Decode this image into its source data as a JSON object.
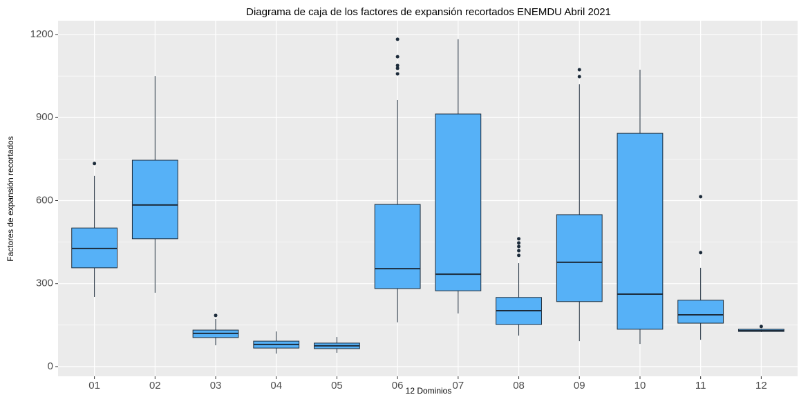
{
  "chart_data": {
    "type": "box",
    "title": "Diagrama de caja de los factores de expansión recortados ENEMDU Abril 2021",
    "x_label": "12 Dominios",
    "y_label": "Factores de expansión recortados",
    "categories": [
      "01",
      "02",
      "03",
      "04",
      "05",
      "06",
      "07",
      "08",
      "09",
      "10",
      "11",
      "12"
    ],
    "color": "#56b1f7",
    "edge_color": "#1c2b3a",
    "boxes": [
      {
        "min": 252,
        "q1": 357,
        "median": 427,
        "q3": 501,
        "max": 689,
        "outliers": [
          734
        ]
      },
      {
        "min": 267,
        "q1": 462,
        "median": 584,
        "q3": 746,
        "max": 1050,
        "outliers": []
      },
      {
        "min": 77,
        "q1": 105,
        "median": 120,
        "q3": 132,
        "max": 172,
        "outliers": [
          185
        ]
      },
      {
        "min": 47,
        "q1": 67,
        "median": 80,
        "q3": 92,
        "max": 127,
        "outliers": []
      },
      {
        "min": 50,
        "q1": 65,
        "median": 75,
        "q3": 85,
        "max": 107,
        "outliers": []
      },
      {
        "min": 160,
        "q1": 282,
        "median": 354,
        "q3": 586,
        "max": 963,
        "outliers": [
          1058,
          1078,
          1088,
          1120,
          1183
        ]
      },
      {
        "min": 192,
        "q1": 274,
        "median": 334,
        "q3": 913,
        "max": 1183,
        "outliers": []
      },
      {
        "min": 112,
        "q1": 152,
        "median": 202,
        "q3": 250,
        "max": 374,
        "outliers": [
          402,
          419,
          434,
          447,
          462
        ]
      },
      {
        "min": 92,
        "q1": 235,
        "median": 377,
        "q3": 549,
        "max": 1020,
        "outliers": [
          1048,
          1073
        ]
      },
      {
        "min": 82,
        "q1": 135,
        "median": 262,
        "q3": 843,
        "max": 1073,
        "outliers": []
      },
      {
        "min": 97,
        "q1": 157,
        "median": 187,
        "q3": 240,
        "max": 357,
        "outliers": [
          412,
          614
        ]
      },
      {
        "min": 125,
        "q1": 127,
        "median": 130,
        "q3": 135,
        "max": 137,
        "outliers": [
          145
        ]
      }
    ],
    "ylim": [
      -35,
      1250
    ],
    "yticks": [
      0,
      300,
      600,
      900,
      1200
    ],
    "grid": true
  }
}
